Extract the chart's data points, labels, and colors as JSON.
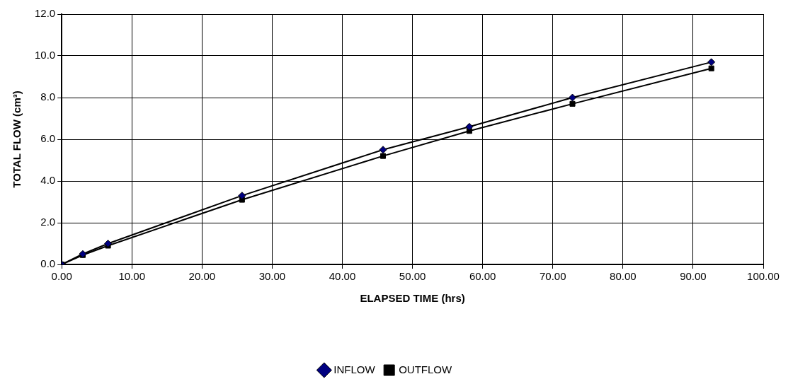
{
  "chart_data": {
    "type": "line",
    "xlabel": "ELAPSED TIME (hrs)",
    "ylabel": "TOTAL FLOW (cm³)",
    "series": [
      {
        "name": "INFLOW",
        "color": "#000080",
        "marker": "diamond",
        "x": [
          0,
          3.0,
          6.6,
          25.7,
          45.8,
          58.1,
          72.8,
          92.6
        ],
        "values": [
          0,
          0.5,
          1.0,
          3.3,
          5.5,
          6.6,
          8.0,
          9.7
        ]
      },
      {
        "name": "OUTFLOW",
        "color": "#000000",
        "marker": "square",
        "x": [
          0,
          3.0,
          6.6,
          25.7,
          45.8,
          58.1,
          72.8,
          92.6
        ],
        "values": [
          0,
          0.45,
          0.9,
          3.1,
          5.2,
          6.4,
          7.7,
          9.4
        ]
      }
    ],
    "xlim": [
      0,
      100
    ],
    "xticks": [
      {
        "value": 0,
        "label": "0.00"
      },
      {
        "value": 10,
        "label": "10.00"
      },
      {
        "value": 20,
        "label": "20.00"
      },
      {
        "value": 30,
        "label": "30.00"
      },
      {
        "value": 40,
        "label": "40.00"
      },
      {
        "value": 50,
        "label": "50.00"
      },
      {
        "value": 60,
        "label": "60.00"
      },
      {
        "value": 70,
        "label": "70.00"
      },
      {
        "value": 80,
        "label": "80.00"
      },
      {
        "value": 90,
        "label": "90.00"
      },
      {
        "value": 100,
        "label": "100.00"
      }
    ],
    "ylim": [
      0,
      12
    ],
    "yticks": [
      {
        "value": 0,
        "label": "0.0"
      },
      {
        "value": 2,
        "label": "2.0"
      },
      {
        "value": 4,
        "label": "4.0"
      },
      {
        "value": 6,
        "label": "6.0"
      },
      {
        "value": 8,
        "label": "8.0"
      },
      {
        "value": 10,
        "label": "10.0"
      },
      {
        "value": 12,
        "label": "12.0"
      }
    ],
    "grid": true,
    "legend": "bottom",
    "line_style": "solid"
  }
}
